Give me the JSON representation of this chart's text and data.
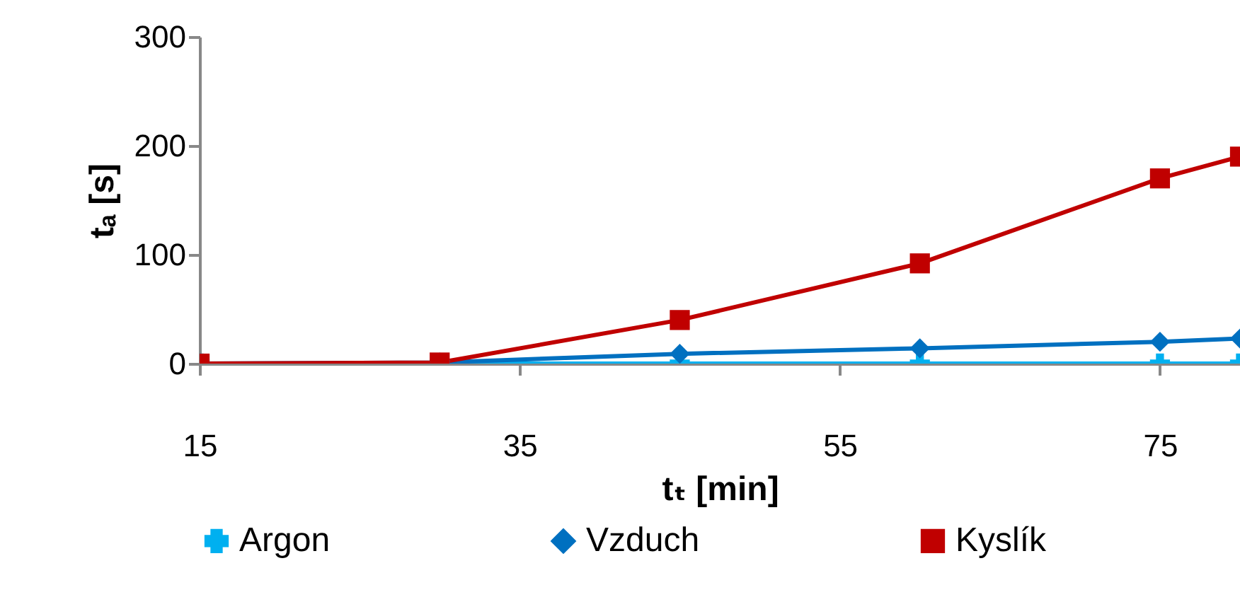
{
  "chart_data": {
    "type": "line",
    "xlabel": "tₜ [min]",
    "ylabel": "tₐ [s]",
    "x": [
      15,
      30,
      45,
      60,
      75,
      80
    ],
    "xlim": [
      15,
      80
    ],
    "xticks": [
      15,
      35,
      55,
      75
    ],
    "ylim": [
      0,
      300
    ],
    "yticks": [
      0,
      100,
      200,
      300
    ],
    "grid": false,
    "legend": "bottom",
    "line_style": "solid",
    "series": [
      {
        "name": "Argon",
        "color": "#00b0f0",
        "marker": "cross",
        "values": [
          0,
          0,
          0,
          0,
          0,
          0
        ]
      },
      {
        "name": "Vzduch",
        "color": "#0070c0",
        "marker": "diamond",
        "values": [
          0,
          1,
          9,
          14,
          20,
          23
        ]
      },
      {
        "name": "Kyslík",
        "color": "#c00000",
        "marker": "square",
        "values": [
          0,
          1,
          40,
          92,
          170,
          190
        ]
      }
    ]
  }
}
